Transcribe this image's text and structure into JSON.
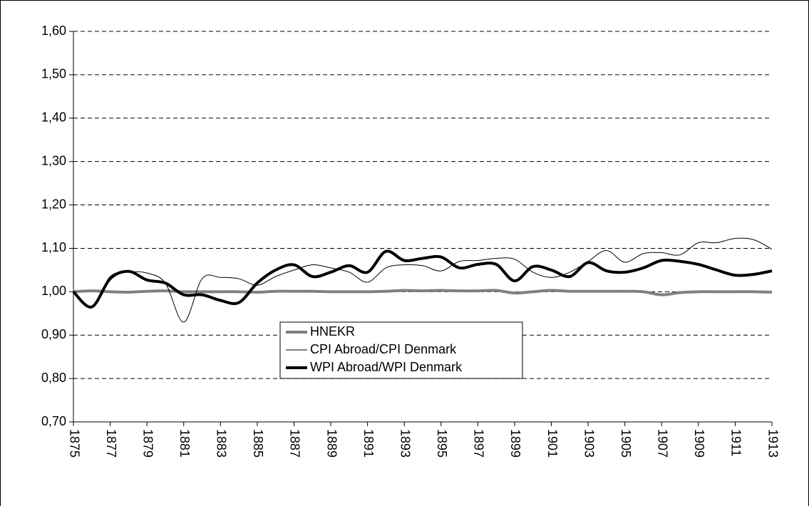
{
  "chart_data": {
    "type": "line",
    "x": [
      1875,
      1876,
      1877,
      1878,
      1879,
      1880,
      1881,
      1882,
      1883,
      1884,
      1885,
      1886,
      1887,
      1888,
      1889,
      1890,
      1891,
      1892,
      1893,
      1894,
      1895,
      1896,
      1897,
      1898,
      1899,
      1900,
      1901,
      1902,
      1903,
      1904,
      1905,
      1906,
      1907,
      1908,
      1909,
      1910,
      1911,
      1912,
      1913
    ],
    "series": [
      {
        "name": "HNEKR",
        "color": "#808080",
        "line_width": 4,
        "values": [
          1.0,
          1.002,
          1.0,
          0.999,
          1.001,
          1.002,
          1.0,
          1.0,
          1.0,
          1.0,
          0.999,
          1.001,
          1.001,
          1.001,
          1.0,
          1.0,
          1.0,
          1.001,
          1.003,
          1.002,
          1.003,
          1.002,
          1.002,
          1.003,
          0.997,
          1.0,
          1.003,
          1.001,
          1.001,
          1.001,
          1.001,
          1.0,
          0.993,
          0.998,
          1.0,
          1.0,
          1.0,
          1.0,
          0.999
        ]
      },
      {
        "name": "CPI Abroad/CPI Denmark",
        "color": "#000000",
        "line_width": 1,
        "values": [
          1.0,
          0.965,
          1.035,
          1.045,
          1.043,
          1.02,
          0.93,
          1.03,
          1.033,
          1.03,
          1.015,
          1.035,
          1.05,
          1.062,
          1.055,
          1.045,
          1.022,
          1.055,
          1.062,
          1.06,
          1.048,
          1.07,
          1.072,
          1.077,
          1.075,
          1.045,
          1.033,
          1.045,
          1.07,
          1.095,
          1.068,
          1.088,
          1.09,
          1.085,
          1.113,
          1.113,
          1.123,
          1.12,
          1.098
        ]
      },
      {
        "name": "WPI Abroad/WPI Denmark",
        "color": "#000000",
        "line_width": 4,
        "values": [
          1.0,
          0.965,
          1.03,
          1.047,
          1.027,
          1.02,
          0.993,
          0.993,
          0.98,
          0.975,
          1.02,
          1.05,
          1.062,
          1.035,
          1.045,
          1.06,
          1.045,
          1.093,
          1.072,
          1.077,
          1.08,
          1.055,
          1.063,
          1.063,
          1.025,
          1.058,
          1.05,
          1.035,
          1.067,
          1.048,
          1.045,
          1.055,
          1.072,
          1.07,
          1.063,
          1.05,
          1.038,
          1.04,
          1.048
        ]
      }
    ],
    "xlim": [
      1875,
      1913
    ],
    "xticks": [
      1875,
      1877,
      1879,
      1881,
      1883,
      1885,
      1887,
      1889,
      1891,
      1893,
      1895,
      1897,
      1899,
      1901,
      1903,
      1905,
      1907,
      1909,
      1911,
      1913
    ],
    "ylim": [
      0.7,
      1.6
    ],
    "yticks": [
      {
        "value": 0.7,
        "label": "0,70"
      },
      {
        "value": 0.8,
        "label": "0,80"
      },
      {
        "value": 0.9,
        "label": "0,90"
      },
      {
        "value": 1.0,
        "label": "1,00"
      },
      {
        "value": 1.1,
        "label": "1,10"
      },
      {
        "value": 1.2,
        "label": "1,20"
      },
      {
        "value": 1.3,
        "label": "1,30"
      },
      {
        "value": 1.4,
        "label": "1,40"
      },
      {
        "value": 1.5,
        "label": "1,50"
      },
      {
        "value": 1.6,
        "label": "1,60"
      }
    ],
    "grid": true,
    "legend": "lower center"
  }
}
